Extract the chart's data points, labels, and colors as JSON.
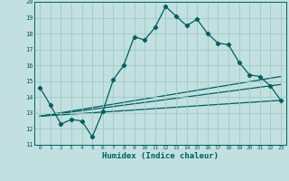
{
  "xlabel": "Humidex (Indice chaleur)",
  "xlim": [
    -0.5,
    23.5
  ],
  "ylim": [
    11,
    20
  ],
  "xticks": [
    0,
    1,
    2,
    3,
    4,
    5,
    6,
    7,
    8,
    9,
    10,
    11,
    12,
    13,
    14,
    15,
    16,
    17,
    18,
    19,
    20,
    21,
    22,
    23
  ],
  "yticks": [
    11,
    12,
    13,
    14,
    15,
    16,
    17,
    18,
    19,
    20
  ],
  "background_color": "#c2e0e0",
  "grid_color": "#a0c8c8",
  "line_color": "#005f5f",
  "line1_x": [
    0,
    1,
    2,
    3,
    4,
    5,
    6,
    7,
    8,
    9,
    10,
    11,
    12,
    13,
    14,
    15,
    16,
    17,
    18,
    19,
    20,
    21,
    22,
    23
  ],
  "line1_y": [
    14.6,
    13.5,
    12.3,
    12.6,
    12.5,
    11.5,
    13.1,
    15.1,
    16.0,
    17.8,
    17.6,
    18.4,
    19.7,
    19.1,
    18.5,
    18.9,
    18.0,
    17.4,
    17.3,
    16.2,
    15.4,
    15.3,
    14.7,
    13.8
  ],
  "line2_x": [
    0,
    23
  ],
  "line2_y": [
    12.8,
    13.8
  ],
  "line3_x": [
    0,
    23
  ],
  "line3_y": [
    12.8,
    14.8
  ],
  "line4_x": [
    0,
    23
  ],
  "line4_y": [
    12.8,
    15.3
  ]
}
